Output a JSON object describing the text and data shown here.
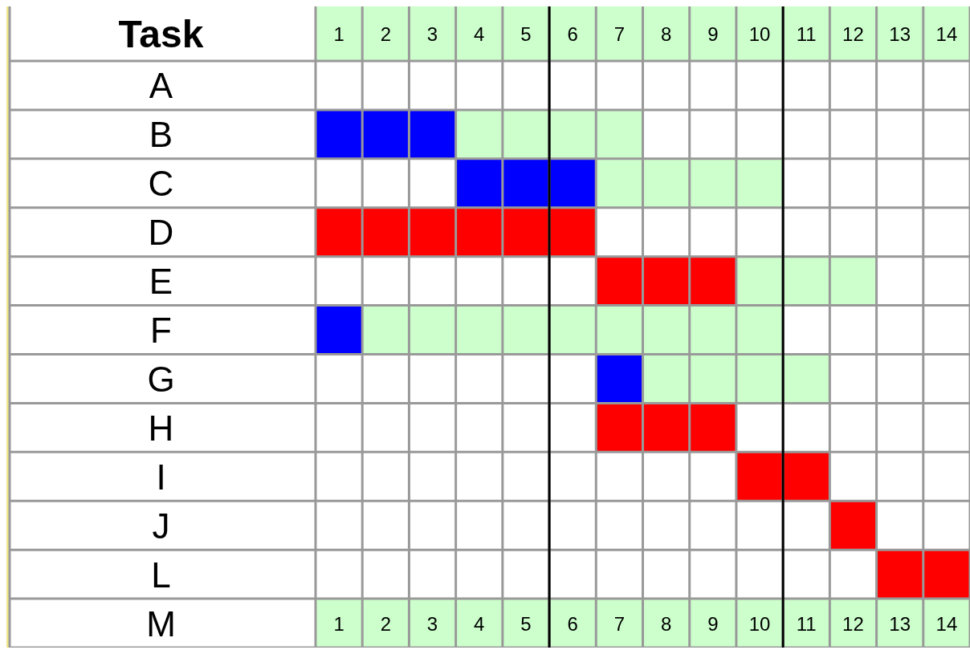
{
  "chart_data": {
    "type": "bar",
    "orientation": "horizontal",
    "ylabel": "Task",
    "categories": [
      "A",
      "B",
      "C",
      "D",
      "E",
      "F",
      "G",
      "H",
      "I",
      "J",
      "L",
      "M"
    ],
    "series": [
      {
        "color": "#0000ff",
        "base": [
          null,
          0.5,
          3.5,
          null,
          null,
          0.5,
          6.5,
          null,
          null,
          null,
          null,
          null
        ],
        "values": [
          null,
          3,
          3,
          null,
          null,
          1,
          1,
          null,
          null,
          null,
          null,
          null
        ]
      },
      {
        "color": "#ff0000",
        "base": [
          null,
          null,
          null,
          0.5,
          6.5,
          null,
          null,
          6.5,
          9.5,
          11.5,
          12.5,
          null
        ],
        "values": [
          null,
          null,
          null,
          6,
          3,
          null,
          null,
          3,
          2,
          1,
          2,
          null
        ]
      },
      {
        "color": "#ccffcc",
        "base": [
          null,
          3.5,
          6.5,
          null,
          9.5,
          1.5,
          7.5,
          null,
          null,
          null,
          null,
          null
        ],
        "values": [
          null,
          4,
          4,
          null,
          3,
          9,
          4,
          null,
          null,
          null,
          null,
          null
        ]
      }
    ],
    "xlim": [
      0.5,
      14.5
    ],
    "xticks": [
      1,
      2,
      3,
      4,
      5,
      6,
      7,
      8,
      9,
      10,
      11,
      12,
      13,
      14
    ],
    "x2lim": [
      0.5,
      14.5
    ],
    "x2ticks": [
      1,
      2,
      3,
      4,
      5,
      6,
      7,
      8,
      9,
      10,
      11,
      12,
      13,
      14
    ],
    "grid": true,
    "ref_lines": [
      {
        "axis": "x",
        "value": 5.5,
        "color": "#000000"
      },
      {
        "axis": "x",
        "value": 10.5,
        "color": "#000000"
      }
    ]
  }
}
